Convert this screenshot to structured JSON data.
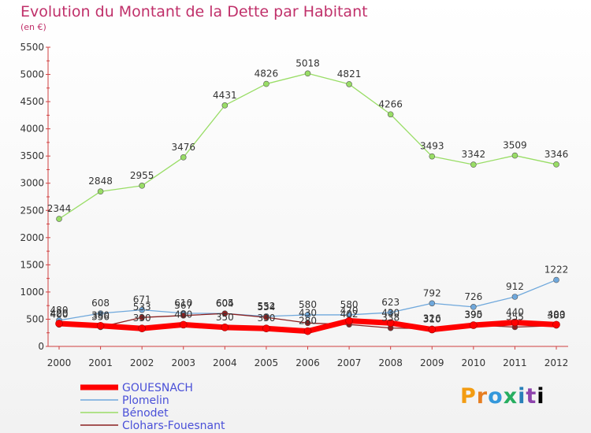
{
  "chart_data": {
    "type": "line",
    "title": "Evolution du Montant de la Dette par Habitant",
    "subtitle": "(en €)",
    "x": [
      "2000",
      "2001",
      "2002",
      "2003",
      "2004",
      "2005",
      "2006",
      "2007",
      "2008",
      "2009",
      "2010",
      "2011",
      "2012"
    ],
    "ylim": [
      0,
      5500
    ],
    "yticks": [
      0,
      500,
      1000,
      1500,
      2000,
      2500,
      3000,
      3500,
      4000,
      4500,
      5000,
      5500
    ],
    "grid": false,
    "legend_position": "bottom-left",
    "series": [
      {
        "name": "GOUESNACH",
        "color": "#ff0000",
        "values": [
          420,
          380,
          330,
          400,
          350,
          330,
          280,
          470,
          430,
          310,
          390,
          440,
          400
        ]
      },
      {
        "name": "Plomelin",
        "color": "#6fa8dc",
        "values": [
          480,
          608,
          671,
          610,
          604,
          552,
          580,
          580,
          623,
          792,
          726,
          912,
          1222
        ]
      },
      {
        "name": "Bénodet",
        "color": "#99dd66",
        "values": [
          2344,
          2848,
          2955,
          3476,
          4431,
          4826,
          5018,
          4821,
          4266,
          3493,
          3342,
          3509,
          3346
        ]
      },
      {
        "name": "Clohars-Fouesnant",
        "color": "#8b2020",
        "values": [
          400,
          356,
          533,
          567,
          605,
          534,
          430,
          402,
          338,
          326,
          395,
          355,
          383
        ]
      }
    ],
    "label_series": [
      2,
      1,
      3,
      0
    ]
  },
  "logo": {
    "letters": [
      "P",
      "r",
      "o",
      "x",
      "i",
      "t",
      "i"
    ]
  }
}
